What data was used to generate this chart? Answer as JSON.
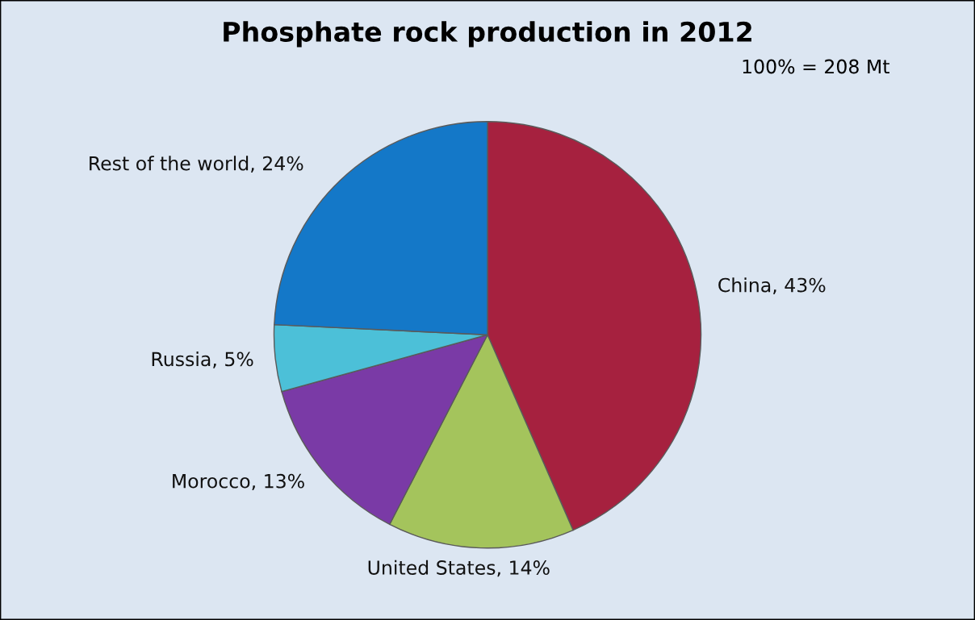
{
  "chart_data": {
    "type": "pie",
    "title": "Phosphate rock production in 2012",
    "categories": [
      "China",
      "United States",
      "Morocco",
      "Russia",
      "Rest of the world"
    ],
    "values": [
      43,
      14,
      13,
      5,
      24
    ],
    "colors": [
      "#a6213f",
      "#a4c45c",
      "#7a3aa6",
      "#4cc0d8",
      "#1478c8"
    ],
    "value_labels": [
      "43%",
      "14%",
      "13%",
      "5%",
      "24%"
    ],
    "annotations": [
      "100% = 208 Mt"
    ],
    "legend": false
  }
}
